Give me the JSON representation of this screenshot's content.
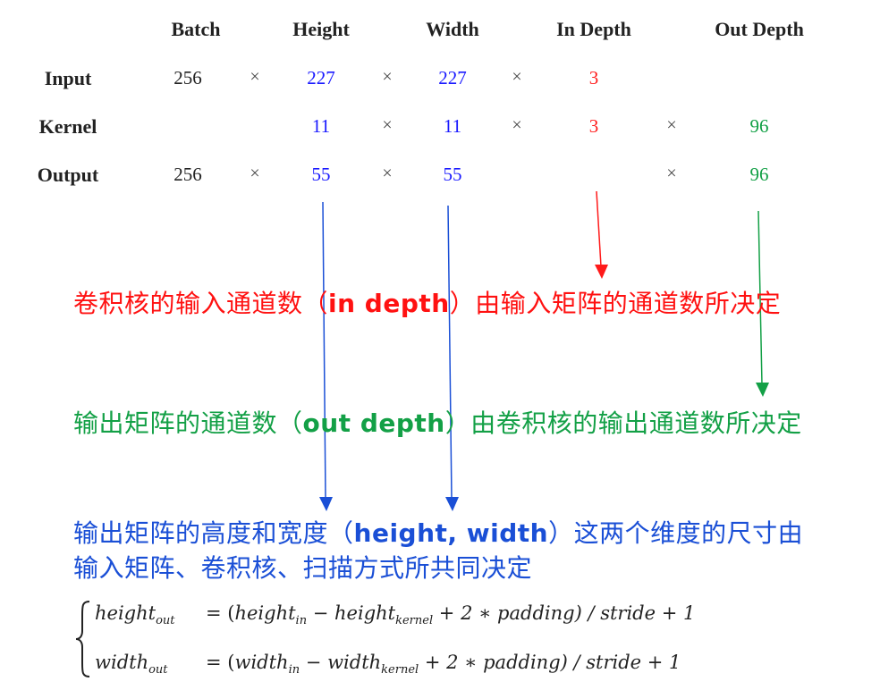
{
  "table": {
    "headers": [
      "Batch",
      "Height",
      "Width",
      "In Depth",
      "Out Depth"
    ],
    "times_symbol": "×",
    "rows": [
      {
        "label": "Input",
        "batch": "256",
        "height": "227",
        "width": "227",
        "in_depth": "3",
        "out_depth": ""
      },
      {
        "label": "Kernel",
        "batch": "",
        "height": "11",
        "width": "11",
        "in_depth": "3",
        "out_depth": "96"
      },
      {
        "label": "Output",
        "batch": "256",
        "height": "55",
        "width": "55",
        "in_depth": "",
        "out_depth": "96"
      }
    ]
  },
  "captions": {
    "in_depth": {
      "prefix": "卷积核的输入通道数（",
      "term": "in depth",
      "suffix": "）由输入矩阵的通道数所决定"
    },
    "out_depth": {
      "prefix": "输出矩阵的通道数（",
      "term": "out depth",
      "suffix": "）由卷积核的输出通道数所决定"
    },
    "hw": {
      "line1_prefix": "输出矩阵的高度和宽度（",
      "line1_term": "height, width",
      "line1_suffix": "）这两个维度的尺寸由",
      "line2": "输入矩阵、卷积核、扫描方式所共同决定"
    }
  },
  "formula": {
    "height": {
      "lhs": "height",
      "lhs_sub": "out",
      "eq": "= (",
      "a": "height",
      "a_sub": "in",
      "minus": " − ",
      "b": "height",
      "b_sub": "kernel",
      "rest": " + 2 ∗ padding) / stride + 1"
    },
    "width": {
      "lhs": "width",
      "lhs_sub": "out",
      "eq": "= (",
      "a": "width",
      "a_sub": "in",
      "minus": " − ",
      "b": "width",
      "b_sub": "kernel",
      "rest": " + 2 ∗ padding) / stride + 1"
    }
  },
  "colors": {
    "blue": "#1a1aff",
    "red": "#ff1a1a",
    "green": "#13a046",
    "caption_blue": "#1a4fd6"
  }
}
